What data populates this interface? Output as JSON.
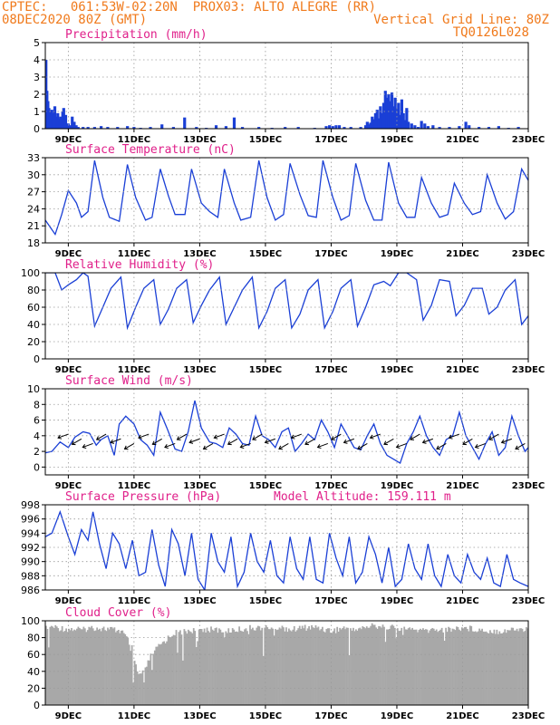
{
  "header": {
    "line1_left": "CPTEC:   061:53W-02:20N  PROX03: ALTO ALEGRE (RR)",
    "line2_left": "08DEC2020 80Z (GMT)",
    "line2_right": "Vertical Grid Line: 80Z",
    "line3_right": "TQ0126L028"
  },
  "colors": {
    "header": "#f07a1c",
    "title": "#e0208a",
    "series": "#1a3fd6",
    "bars": "#1a3fd6",
    "cloud": "#a8a8a8",
    "grid": "#9a9a9a"
  },
  "chart_data": [
    {
      "type": "bar",
      "title": "Precipitation (mm/h)",
      "ylim": [
        0,
        5
      ],
      "yticks": [
        0,
        1,
        2,
        3,
        4,
        5
      ],
      "xtick_labels": [
        "9DEC",
        "11DEC",
        "13DEC",
        "15DEC",
        "17DEC",
        "19DEC",
        "21DEC",
        "23DEC"
      ],
      "grid": true,
      "x_start": 8.3,
      "x_end": 23.0,
      "bars": [
        [
          8.32,
          4.0
        ],
        [
          8.35,
          2.2
        ],
        [
          8.38,
          1.6
        ],
        [
          8.41,
          1.2
        ],
        [
          8.44,
          1.0
        ],
        [
          8.47,
          0.8
        ],
        [
          8.5,
          1.1
        ],
        [
          8.53,
          0.6
        ],
        [
          8.56,
          0.9
        ],
        [
          8.59,
          1.3
        ],
        [
          8.62,
          0.7
        ],
        [
          8.65,
          0.5
        ],
        [
          8.68,
          0.9
        ],
        [
          8.71,
          0.6
        ],
        [
          8.74,
          0.4
        ],
        [
          8.77,
          0.7
        ],
        [
          8.8,
          0.3
        ],
        [
          8.83,
          1.0
        ],
        [
          8.86,
          1.2
        ],
        [
          8.89,
          0.5
        ],
        [
          8.92,
          0.8
        ],
        [
          8.95,
          0.3
        ],
        [
          9.0,
          0.3
        ],
        [
          9.06,
          0.2
        ],
        [
          9.12,
          0.7
        ],
        [
          9.18,
          0.4
        ],
        [
          9.24,
          0.2
        ],
        [
          9.3,
          0.1
        ],
        [
          9.45,
          0.1
        ],
        [
          9.6,
          0.1
        ],
        [
          9.8,
          0.1
        ],
        [
          10.0,
          0.15
        ],
        [
          10.2,
          0.1
        ],
        [
          10.5,
          0.1
        ],
        [
          10.8,
          0.15
        ],
        [
          11.0,
          0.1
        ],
        [
          11.2,
          0.05
        ],
        [
          11.5,
          0.1
        ],
        [
          11.85,
          0.25
        ],
        [
          12.2,
          0.1
        ],
        [
          12.54,
          0.65
        ],
        [
          12.9,
          0.1
        ],
        [
          13.2,
          0.05
        ],
        [
          13.5,
          0.2
        ],
        [
          13.8,
          0.15
        ],
        [
          14.05,
          0.65
        ],
        [
          14.3,
          0.1
        ],
        [
          14.8,
          0.1
        ],
        [
          15.2,
          0.05
        ],
        [
          15.6,
          0.1
        ],
        [
          16.0,
          0.1
        ],
        [
          16.5,
          0.05
        ],
        [
          16.85,
          0.15
        ],
        [
          16.95,
          0.2
        ],
        [
          17.05,
          0.15
        ],
        [
          17.15,
          0.2
        ],
        [
          17.25,
          0.2
        ],
        [
          17.4,
          0.1
        ],
        [
          17.6,
          0.1
        ],
        [
          17.9,
          0.1
        ],
        [
          18.05,
          0.2
        ],
        [
          18.1,
          0.4
        ],
        [
          18.15,
          0.25
        ],
        [
          18.2,
          0.35
        ],
        [
          18.25,
          0.7
        ],
        [
          18.3,
          0.55
        ],
        [
          18.35,
          0.9
        ],
        [
          18.4,
          1.1
        ],
        [
          18.45,
          0.6
        ],
        [
          18.5,
          1.3
        ],
        [
          18.55,
          0.9
        ],
        [
          18.6,
          1.5
        ],
        [
          18.65,
          2.2
        ],
        [
          18.7,
          1.8
        ],
        [
          18.75,
          2.0
        ],
        [
          18.8,
          1.6
        ],
        [
          18.85,
          2.1
        ],
        [
          18.9,
          1.3
        ],
        [
          18.95,
          1.8
        ],
        [
          19.0,
          1.2
        ],
        [
          19.05,
          1.5
        ],
        [
          19.1,
          0.8
        ],
        [
          19.15,
          1.7
        ],
        [
          19.2,
          0.9
        ],
        [
          19.25,
          0.5
        ],
        [
          19.3,
          1.2
        ],
        [
          19.35,
          0.4
        ],
        [
          19.45,
          0.3
        ],
        [
          19.55,
          0.2
        ],
        [
          19.65,
          0.1
        ],
        [
          19.75,
          0.45
        ],
        [
          19.85,
          0.3
        ],
        [
          19.95,
          0.15
        ],
        [
          20.1,
          0.2
        ],
        [
          20.3,
          0.1
        ],
        [
          20.6,
          0.1
        ],
        [
          20.9,
          0.15
        ],
        [
          21.1,
          0.4
        ],
        [
          21.2,
          0.2
        ],
        [
          21.5,
          0.1
        ],
        [
          21.8,
          0.1
        ],
        [
          22.1,
          0.15
        ],
        [
          22.4,
          0.05
        ],
        [
          22.7,
          0.1
        ]
      ]
    },
    {
      "type": "line",
      "title": "Surface Temperature (nC)",
      "ylim": [
        18,
        33
      ],
      "yticks": [
        18,
        21,
        24,
        27,
        30,
        33
      ],
      "xtick_labels": [
        "9DEC",
        "11DEC",
        "13DEC",
        "15DEC",
        "17DEC",
        "19DEC",
        "21DEC",
        "23DEC"
      ],
      "grid": true,
      "x": [
        8.3,
        8.6,
        8.8,
        9.0,
        9.25,
        9.4,
        9.6,
        9.8,
        10.05,
        10.25,
        10.55,
        10.8,
        11.05,
        11.35,
        11.55,
        11.8,
        12.05,
        12.25,
        12.55,
        12.75,
        13.05,
        13.3,
        13.55,
        13.75,
        14.05,
        14.25,
        14.55,
        14.8,
        15.05,
        15.3,
        15.55,
        15.75,
        16.05,
        16.3,
        16.55,
        16.75,
        17.05,
        17.3,
        17.55,
        17.75,
        18.05,
        18.3,
        18.55,
        18.75,
        19.05,
        19.3,
        19.55,
        19.75,
        20.05,
        20.3,
        20.55,
        20.75,
        21.05,
        21.3,
        21.55,
        21.75,
        22.05,
        22.3,
        22.55,
        22.8,
        23.0
      ],
      "y": [
        22.0,
        19.5,
        23.0,
        27.2,
        25.0,
        22.5,
        23.5,
        32.5,
        26.0,
        22.5,
        21.8,
        31.8,
        26.0,
        22.0,
        22.5,
        31.0,
        26.2,
        23.0,
        23.0,
        31.0,
        25.0,
        23.5,
        22.5,
        31.0,
        25.0,
        22.0,
        22.5,
        32.5,
        26.0,
        22.0,
        23.0,
        32.0,
        26.5,
        22.8,
        22.5,
        32.5,
        26.0,
        22.0,
        22.8,
        32.0,
        25.5,
        22.0,
        22.0,
        32.2,
        25.0,
        22.5,
        22.5,
        29.5,
        25.0,
        22.5,
        23.0,
        28.5,
        25.0,
        23.0,
        23.5,
        30.0,
        25.0,
        22.2,
        23.5,
        31.0,
        29.0
      ]
    },
    {
      "type": "line",
      "title": "Relative Humidity (%)",
      "ylim": [
        0,
        100
      ],
      "yticks": [
        0,
        20,
        40,
        60,
        80,
        100
      ],
      "xtick_labels": [
        "9DEC",
        "11DEC",
        "13DEC",
        "15DEC",
        "17DEC",
        "19DEC",
        "21DEC",
        "23DEC"
      ],
      "grid": true,
      "x": [
        8.3,
        8.6,
        8.8,
        9.0,
        9.25,
        9.45,
        9.6,
        9.8,
        10.05,
        10.3,
        10.6,
        10.8,
        11.05,
        11.3,
        11.6,
        11.8,
        12.05,
        12.3,
        12.6,
        12.8,
        13.05,
        13.3,
        13.6,
        13.8,
        14.05,
        14.3,
        14.6,
        14.8,
        15.05,
        15.3,
        15.6,
        15.8,
        16.05,
        16.3,
        16.6,
        16.8,
        17.05,
        17.3,
        17.6,
        17.8,
        18.05,
        18.3,
        18.6,
        18.8,
        19.05,
        19.3,
        19.6,
        19.8,
        20.05,
        20.3,
        20.6,
        20.8,
        21.05,
        21.3,
        21.6,
        21.8,
        22.05,
        22.3,
        22.6,
        22.8,
        23.0
      ],
      "y": [
        100,
        100,
        80,
        86,
        92,
        100,
        96,
        38,
        60,
        82,
        95,
        36,
        60,
        82,
        92,
        40,
        58,
        82,
        92,
        42,
        62,
        80,
        95,
        40,
        60,
        80,
        95,
        36,
        55,
        82,
        92,
        36,
        52,
        80,
        92,
        36,
        55,
        82,
        92,
        38,
        60,
        86,
        90,
        85,
        100,
        100,
        92,
        45,
        62,
        92,
        90,
        50,
        62,
        82,
        82,
        52,
        60,
        80,
        92,
        40,
        50
      ]
    },
    {
      "type": "line",
      "title": "Surface Wind (m/s)",
      "ylim": [
        -1,
        10
      ],
      "yticks": [
        0,
        2,
        4,
        6,
        8,
        10
      ],
      "xtick_labels": [
        "9DEC",
        "11DEC",
        "13DEC",
        "15DEC",
        "17DEC",
        "19DEC",
        "21DEC",
        "23DEC"
      ],
      "grid": true,
      "x": [
        8.3,
        8.5,
        8.75,
        9.0,
        9.2,
        9.45,
        9.65,
        9.85,
        10.0,
        10.2,
        10.4,
        10.55,
        10.75,
        11.0,
        11.2,
        11.4,
        11.6,
        11.8,
        12.0,
        12.25,
        12.45,
        12.65,
        12.85,
        13.05,
        13.3,
        13.5,
        13.7,
        13.9,
        14.1,
        14.3,
        14.5,
        14.7,
        14.9,
        15.1,
        15.3,
        15.5,
        15.7,
        15.9,
        16.1,
        16.3,
        16.5,
        16.7,
        16.9,
        17.1,
        17.3,
        17.5,
        17.7,
        17.9,
        18.1,
        18.3,
        18.5,
        18.7,
        18.9,
        19.1,
        19.3,
        19.5,
        19.7,
        19.9,
        20.1,
        20.3,
        20.5,
        20.7,
        20.9,
        21.1,
        21.3,
        21.5,
        21.7,
        21.9,
        22.1,
        22.3,
        22.5,
        22.7,
        22.9,
        23.0
      ],
      "y": [
        1.8,
        2.0,
        3.2,
        2.5,
        3.8,
        4.5,
        4.3,
        2.8,
        3.5,
        4.0,
        1.5,
        5.5,
        6.5,
        5.5,
        3.5,
        2.8,
        1.5,
        7.0,
        5.0,
        2.3,
        2.0,
        4.5,
        8.5,
        5.0,
        3.2,
        3.0,
        2.5,
        5.0,
        4.2,
        3.0,
        2.8,
        6.5,
        4.0,
        3.5,
        2.5,
        4.5,
        5.0,
        2.0,
        3.0,
        4.2,
        3.5,
        6.0,
        4.5,
        2.5,
        5.5,
        4.0,
        2.5,
        2.2,
        4.0,
        5.5,
        3.0,
        1.5,
        1.0,
        0.5,
        3.0,
        4.5,
        6.5,
        4.0,
        2.5,
        1.5,
        3.5,
        4.0,
        7.0,
        4.0,
        2.5,
        1.0,
        3.0,
        4.5,
        1.5,
        2.5,
        6.5,
        4.0,
        2.0,
        2.5
      ]
    },
    {
      "type": "line",
      "title": "Surface Pressure (hPa)",
      "annotation": "Model Altitude: 159.111 m",
      "ylim": [
        986,
        998
      ],
      "yticks": [
        986,
        988,
        990,
        992,
        994,
        996,
        998
      ],
      "xtick_labels": [
        "9DEC",
        "11DEC",
        "13DEC",
        "15DEC",
        "17DEC",
        "19DEC",
        "21DEC",
        "23DEC"
      ],
      "grid": true,
      "x": [
        8.3,
        8.5,
        8.75,
        9.0,
        9.2,
        9.4,
        9.6,
        9.75,
        9.95,
        10.15,
        10.35,
        10.55,
        10.75,
        10.95,
        11.15,
        11.35,
        11.55,
        11.75,
        11.95,
        12.15,
        12.35,
        12.55,
        12.75,
        12.95,
        13.15,
        13.35,
        13.55,
        13.75,
        13.95,
        14.15,
        14.35,
        14.55,
        14.75,
        14.95,
        15.15,
        15.35,
        15.55,
        15.75,
        15.95,
        16.15,
        16.35,
        16.55,
        16.75,
        16.95,
        17.15,
        17.35,
        17.55,
        17.75,
        17.95,
        18.15,
        18.35,
        18.55,
        18.75,
        18.95,
        19.15,
        19.35,
        19.55,
        19.75,
        19.95,
        20.15,
        20.35,
        20.55,
        20.75,
        20.95,
        21.15,
        21.35,
        21.55,
        21.75,
        21.95,
        22.15,
        22.35,
        22.55,
        22.75,
        23.0
      ],
      "y": [
        993.5,
        994.0,
        997.0,
        993.5,
        991.0,
        994.5,
        993.0,
        997.0,
        992.5,
        989.0,
        994.0,
        992.5,
        989.0,
        993.0,
        988.0,
        988.5,
        994.5,
        989.5,
        986.5,
        994.5,
        992.5,
        988.0,
        994.0,
        987.5,
        986.0,
        994.0,
        990.0,
        988.5,
        993.5,
        986.5,
        988.5,
        994.0,
        990.0,
        988.5,
        993.0,
        988.0,
        987.0,
        993.5,
        989.0,
        987.5,
        993.5,
        987.5,
        987.0,
        994.0,
        990.5,
        988.0,
        993.5,
        987.0,
        988.5,
        993.5,
        991.0,
        987.0,
        992.0,
        986.5,
        987.5,
        992.5,
        989.0,
        987.5,
        992.5,
        988.0,
        986.5,
        991.0,
        988.0,
        987.0,
        991.0,
        988.5,
        987.5,
        990.5,
        987.0,
        986.5,
        991.0,
        987.5,
        987.0,
        986.5
      ]
    },
    {
      "type": "bar",
      "title": "Cloud Cover (%)",
      "ylim": [
        0,
        100
      ],
      "yticks": [
        0,
        20,
        40,
        60,
        80,
        100
      ],
      "xtick_labels": [
        "9DEC",
        "11DEC",
        "13DEC",
        "15DEC",
        "17DEC",
        "19DEC",
        "21DEC",
        "23DEC"
      ],
      "grid": true,
      "x_start": 8.3,
      "x_end": 23.0,
      "profile_x": [
        8.3,
        8.6,
        9.0,
        9.4,
        9.8,
        10.2,
        10.6,
        10.9,
        11.1,
        11.3,
        11.5,
        11.8,
        12.2,
        12.6,
        13.0,
        13.4,
        13.8,
        14.2,
        14.6,
        15.0,
        15.4,
        15.8,
        16.2,
        16.6,
        17.0,
        17.4,
        17.8,
        18.2,
        18.6,
        19.0,
        19.4,
        19.8,
        20.2,
        20.6,
        21.0,
        21.4,
        21.8,
        22.2,
        22.6,
        23.0
      ],
      "profile_y": [
        94,
        92,
        90,
        90,
        92,
        90,
        88,
        70,
        35,
        40,
        60,
        72,
        86,
        88,
        90,
        90,
        88,
        90,
        92,
        92,
        92,
        90,
        92,
        92,
        88,
        92,
        90,
        94,
        94,
        92,
        90,
        88,
        90,
        90,
        92,
        90,
        88,
        88,
        90,
        90
      ]
    }
  ]
}
